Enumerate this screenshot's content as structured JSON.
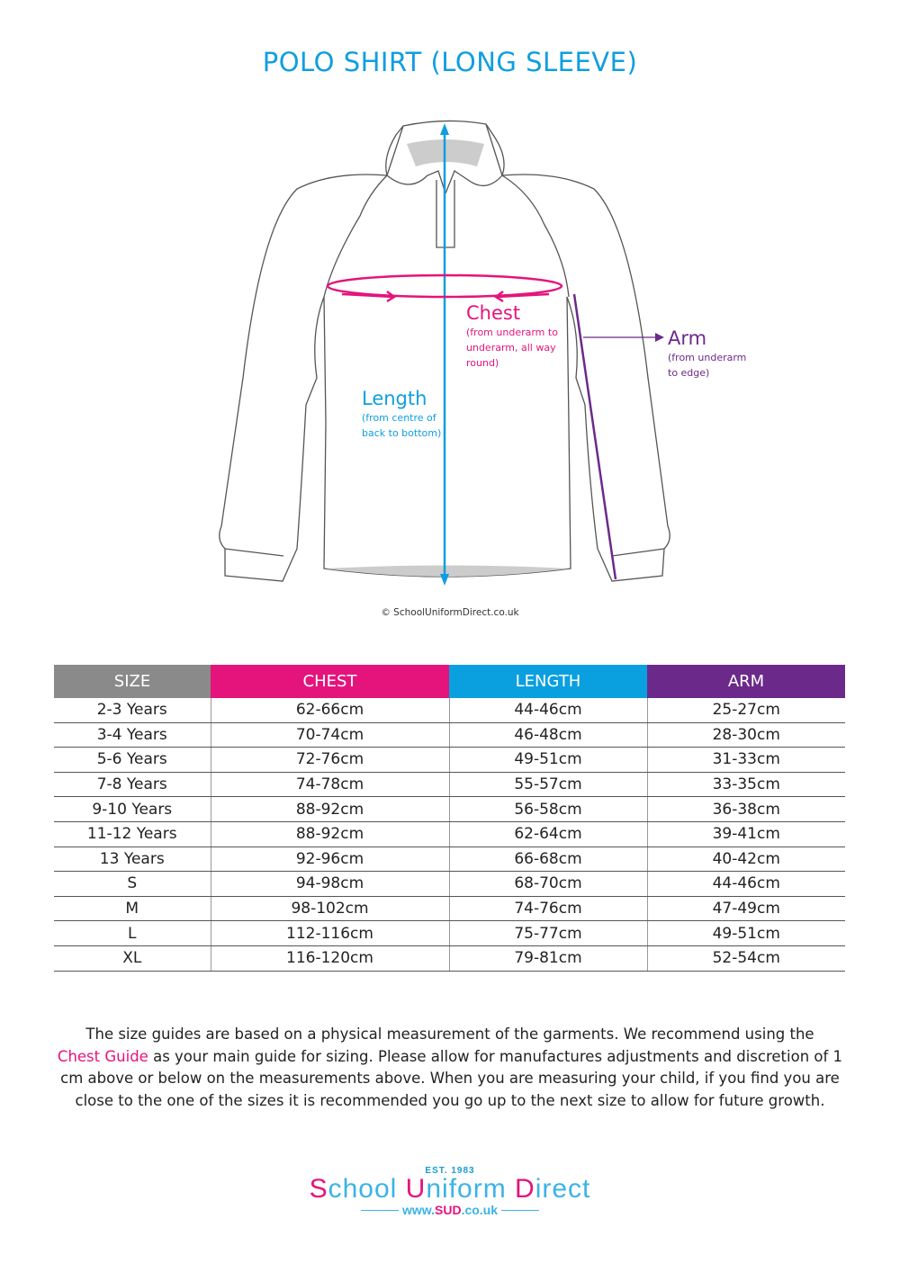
{
  "title": "POLO SHIRT (LONG SLEEVE)",
  "diagram": {
    "chest": {
      "label": "Chest",
      "note": "(from underarm to underarm, all way round)",
      "color": "#e4147c"
    },
    "length": {
      "label": "Length",
      "note": "(from centre of back to bottom)",
      "color": "#0f9ee0"
    },
    "arm": {
      "label": "Arm",
      "note": "(from underarm to edge)",
      "color": "#6b2a8a"
    },
    "copyright": "© SchoolUniformDirect.co.uk"
  },
  "table": {
    "headers": [
      "SIZE",
      "CHEST",
      "LENGTH",
      "ARM"
    ],
    "header_colors": [
      "#8a8a8a",
      "#e4147c",
      "#0aa0e0",
      "#6b2a8a"
    ],
    "rows": [
      [
        "2-3 Years",
        "62-66cm",
        "44-46cm",
        "25-27cm"
      ],
      [
        "3-4 Years",
        "70-74cm",
        "46-48cm",
        "28-30cm"
      ],
      [
        "5-6 Years",
        "72-76cm",
        "49-51cm",
        "31-33cm"
      ],
      [
        "7-8 Years",
        "74-78cm",
        "55-57cm",
        "33-35cm"
      ],
      [
        "9-10 Years",
        "88-92cm",
        "56-58cm",
        "36-38cm"
      ],
      [
        "11-12 Years",
        "88-92cm",
        "62-64cm",
        "39-41cm"
      ],
      [
        "13 Years",
        "92-96cm",
        "66-68cm",
        "40-42cm"
      ],
      [
        "S",
        "94-98cm",
        "68-70cm",
        "44-46cm"
      ],
      [
        "M",
        "98-102cm",
        "74-76cm",
        "47-49cm"
      ],
      [
        "L",
        "112-116cm",
        "75-77cm",
        "49-51cm"
      ],
      [
        "XL",
        "116-120cm",
        "79-81cm",
        "52-54cm"
      ]
    ]
  },
  "note": {
    "before": "The size guides are based on a physical measurement of the garments. We recommend using the",
    "highlight": "Chest Guide",
    "after": "as your main guide for sizing. Please allow for manufactures adjustments and discretion of  1 cm above or below on the measurements above. When you are measuring your child, if you find you are close to the one of the sizes it is recommended you go up to the next size to allow for future growth."
  },
  "logo": {
    "est": "EST. 1983",
    "brand": "School Uniform Direct",
    "url_prefix": "www.",
    "url_brand": "SUD",
    "url_suffix": ".co.uk"
  }
}
